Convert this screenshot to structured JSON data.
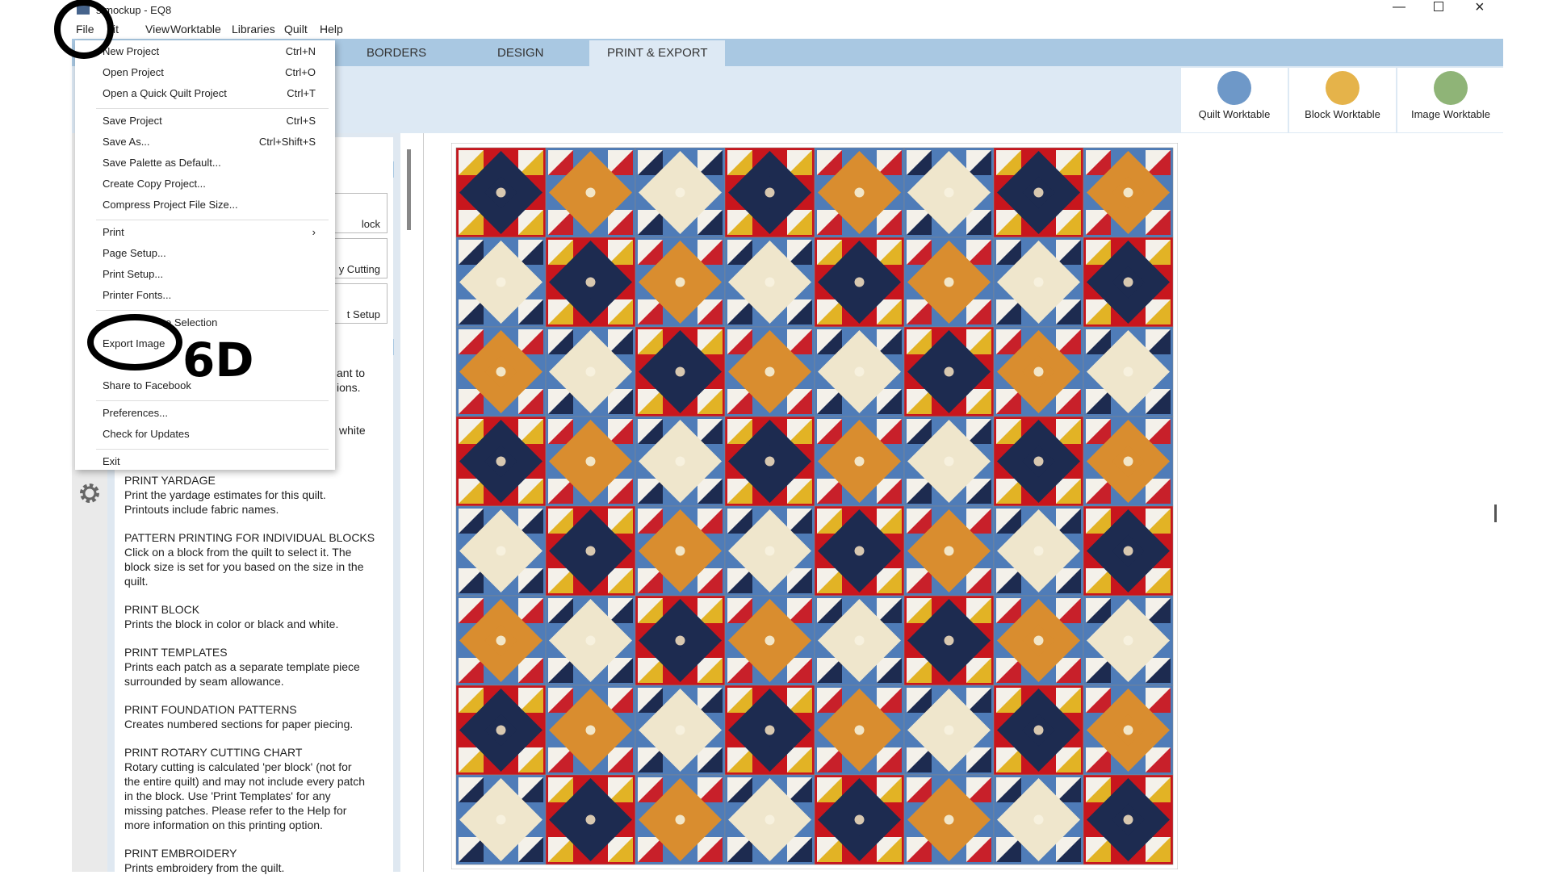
{
  "window": {
    "title": "s mockup - EQ8"
  },
  "menu_bar": [
    "File",
    "it",
    "View",
    "Worktable",
    "Libraries",
    "Quilt",
    "Help"
  ],
  "tabs": [
    "BORDERS",
    "DESIGN",
    "PRINT & EXPORT"
  ],
  "worktables": [
    "Quilt Worktable",
    "Block Worktable",
    "Image Worktable"
  ],
  "file_menu": [
    [
      {
        "label": "New Project",
        "shortcut": "Ctrl+N"
      },
      {
        "label": "Open Project",
        "shortcut": "Ctrl+O"
      },
      {
        "label": "Open a Quick Quilt Project",
        "shortcut": "Ctrl+T"
      }
    ],
    [
      {
        "label": "Save Project",
        "shortcut": "Ctrl+S"
      },
      {
        "label": "Save As...",
        "shortcut": "Ctrl+Shift+S"
      },
      {
        "label": "Save Palette as Default..."
      },
      {
        "label": "Create Copy Project..."
      },
      {
        "label": "Compress Project File Size..."
      }
    ],
    [
      {
        "label": "Print",
        "shortcut": "›"
      },
      {
        "label": "Page Setup..."
      },
      {
        "label": "Print Setup..."
      },
      {
        "label": "Printer Fonts..."
      }
    ],
    [
      {
        "label": "e Selection"
      },
      {
        "label": "Export Image"
      },
      {
        "label": "Share to Facebook"
      }
    ],
    [
      {
        "label": "Preferences..."
      },
      {
        "label": "Check for Updates"
      }
    ],
    [
      {
        "label": "Exit"
      }
    ]
  ],
  "side_buttons": [
    "lock",
    "y Cutting",
    "t Setup"
  ],
  "partial_text": [
    "ant to",
    "ions.",
    "white"
  ],
  "help_sections": [
    {
      "heading": "PRINT YARDAGE",
      "body": [
        "Print the yardage estimates for this quilt.",
        "Printouts include fabric names."
      ]
    },
    {
      "heading": "PATTERN PRINTING FOR INDIVIDUAL BLOCKS",
      "body": [
        "Click on a block from the quilt to select it. The",
        "block size is set for you based on the size in the",
        "quilt."
      ]
    },
    {
      "heading": "PRINT BLOCK",
      "body": [
        "Prints the block in color or black and white."
      ]
    },
    {
      "heading": "PRINT TEMPLATES",
      "body": [
        "Prints each patch as a separate template piece",
        "surrounded by seam allowance."
      ]
    },
    {
      "heading": "PRINT FOUNDATION PATTERNS",
      "body": [
        "Creates numbered sections for paper piecing."
      ]
    },
    {
      "heading": "PRINT ROTARY CUTTING CHART",
      "body": [
        "Rotary cutting is calculated 'per block' (not for",
        "the entire quilt) and may not include every patch",
        "in the block. Use 'Print Templates' for any",
        "missing patches. Please refer to the Help for",
        "more information on this printing option."
      ]
    },
    {
      "heading": "PRINT EMBROIDERY",
      "body": [
        "Prints embroidery from the quilt."
      ]
    }
  ],
  "annotation": "6D"
}
